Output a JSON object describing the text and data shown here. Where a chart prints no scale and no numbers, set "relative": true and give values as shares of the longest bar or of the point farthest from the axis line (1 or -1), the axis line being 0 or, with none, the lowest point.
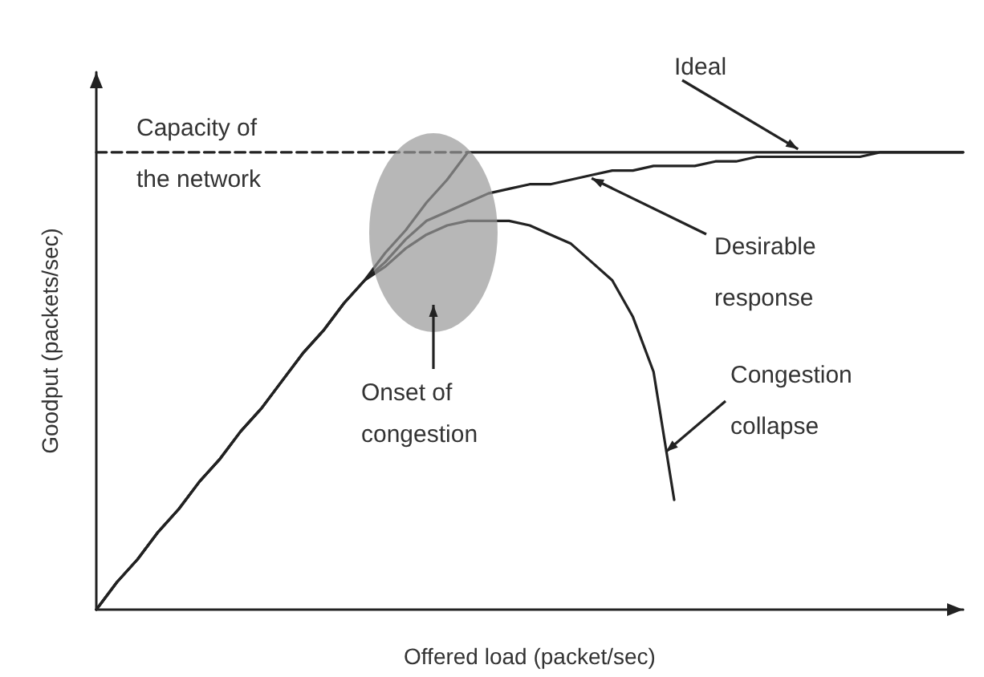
{
  "chart_data": {
    "type": "line",
    "relative": true,
    "xlabel": "Offered load (packet/sec)",
    "ylabel": "Goodput (packets/sec)",
    "categories": [
      null,
      null,
      null,
      null,
      null,
      null,
      null,
      null,
      null,
      null,
      null,
      null,
      null,
      null,
      null,
      null,
      null,
      null,
      null,
      null,
      null,
      null,
      null,
      null,
      null,
      null,
      null,
      null,
      null,
      null,
      null,
      null,
      null,
      null,
      null,
      null,
      null,
      null,
      null,
      null,
      null,
      null,
      null
    ],
    "tick_labels": false,
    "grid": false,
    "legend": false,
    "marker": "none",
    "series": [
      {
        "name": "Capacity of the network",
        "color": "#222222",
        "line_style": "dashed",
        "values": [
          1,
          1,
          1,
          1,
          1,
          1,
          1,
          1,
          1,
          1,
          1,
          1,
          1,
          1,
          1,
          1,
          1,
          1,
          1,
          null,
          null,
          null,
          null,
          null,
          null,
          null,
          null,
          null,
          null,
          null,
          null,
          null,
          null,
          null,
          null,
          null,
          null,
          null,
          null,
          null,
          null,
          null,
          null
        ]
      },
      {
        "name": "Ideal",
        "color": "#222222",
        "line_style": "solid",
        "values": [
          0,
          0.06,
          0.11,
          0.17,
          0.22,
          0.28,
          0.33,
          0.39,
          0.44,
          0.5,
          0.56,
          0.61,
          0.67,
          0.72,
          0.78,
          0.83,
          0.89,
          0.94,
          1,
          1,
          1,
          1,
          1,
          1,
          1,
          1,
          1,
          1,
          1,
          1,
          1,
          1,
          1,
          1,
          1,
          1,
          1,
          1,
          1,
          1,
          1,
          1,
          1
        ]
      },
      {
        "name": "Desirable response",
        "color": "#222222",
        "line_style": "solid",
        "values": [
          0,
          0.06,
          0.11,
          0.17,
          0.22,
          0.28,
          0.33,
          0.39,
          0.44,
          0.5,
          0.56,
          0.61,
          0.67,
          0.72,
          0.76,
          0.81,
          0.85,
          0.87,
          0.89,
          0.91,
          0.92,
          0.93,
          0.93,
          0.94,
          0.95,
          0.96,
          0.96,
          0.97,
          0.97,
          0.97,
          0.98,
          0.98,
          0.99,
          0.99,
          0.99,
          0.99,
          0.99,
          0.99,
          1,
          1,
          1,
          1,
          1
        ]
      },
      {
        "name": "Congestion collapse",
        "color": "#222222",
        "line_style": "solid",
        "values": [
          0,
          0.06,
          0.11,
          0.17,
          0.22,
          0.28,
          0.33,
          0.39,
          0.44,
          0.5,
          0.56,
          0.61,
          0.67,
          0.72,
          0.75,
          0.79,
          0.82,
          0.84,
          0.85,
          0.85,
          0.85,
          0.84,
          0.82,
          0.8,
          0.76,
          0.72,
          0.64,
          0.52,
          0.24,
          null,
          null,
          null,
          null,
          null,
          null,
          null,
          null,
          null,
          null,
          null,
          null,
          null,
          null
        ]
      }
    ],
    "annotations": [
      "Onset of congestion"
    ]
  }
}
